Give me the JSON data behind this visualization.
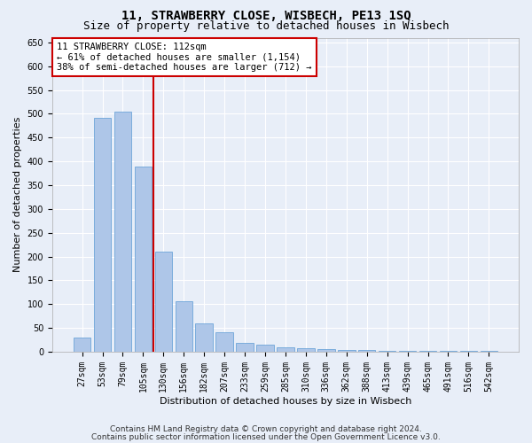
{
  "title": "11, STRAWBERRY CLOSE, WISBECH, PE13 1SQ",
  "subtitle": "Size of property relative to detached houses in Wisbech",
  "xlabel": "Distribution of detached houses by size in Wisbech",
  "ylabel": "Number of detached properties",
  "footnote1": "Contains HM Land Registry data © Crown copyright and database right 2024.",
  "footnote2": "Contains public sector information licensed under the Open Government Licence v3.0.",
  "property_label": "11 STRAWBERRY CLOSE: 112sqm",
  "annotation_line1": "← 61% of detached houses are smaller (1,154)",
  "annotation_line2": "38% of semi-detached houses are larger (712) →",
  "bar_color": "#aec6e8",
  "bar_edge_color": "#5b9bd5",
  "vline_color": "#cc0000",
  "annotation_box_edgecolor": "#cc0000",
  "annotation_box_facecolor": "#ffffff",
  "background_color": "#e8eef8",
  "grid_color": "#ffffff",
  "categories": [
    "27sqm",
    "53sqm",
    "79sqm",
    "105sqm",
    "130sqm",
    "156sqm",
    "182sqm",
    "207sqm",
    "233sqm",
    "259sqm",
    "285sqm",
    "310sqm",
    "336sqm",
    "362sqm",
    "388sqm",
    "413sqm",
    "439sqm",
    "465sqm",
    "491sqm",
    "516sqm",
    "542sqm"
  ],
  "values": [
    30,
    492,
    505,
    390,
    210,
    107,
    59,
    41,
    19,
    14,
    10,
    8,
    6,
    4,
    3,
    2,
    1,
    1,
    1,
    2,
    1
  ],
  "ylim": [
    0,
    660
  ],
  "yticks": [
    0,
    50,
    100,
    150,
    200,
    250,
    300,
    350,
    400,
    450,
    500,
    550,
    600,
    650
  ],
  "vline_x_index": 3.5,
  "title_fontsize": 10,
  "subtitle_fontsize": 9,
  "axis_label_fontsize": 8,
  "tick_fontsize": 7,
  "annotation_fontsize": 7.5,
  "footnote_fontsize": 6.5
}
